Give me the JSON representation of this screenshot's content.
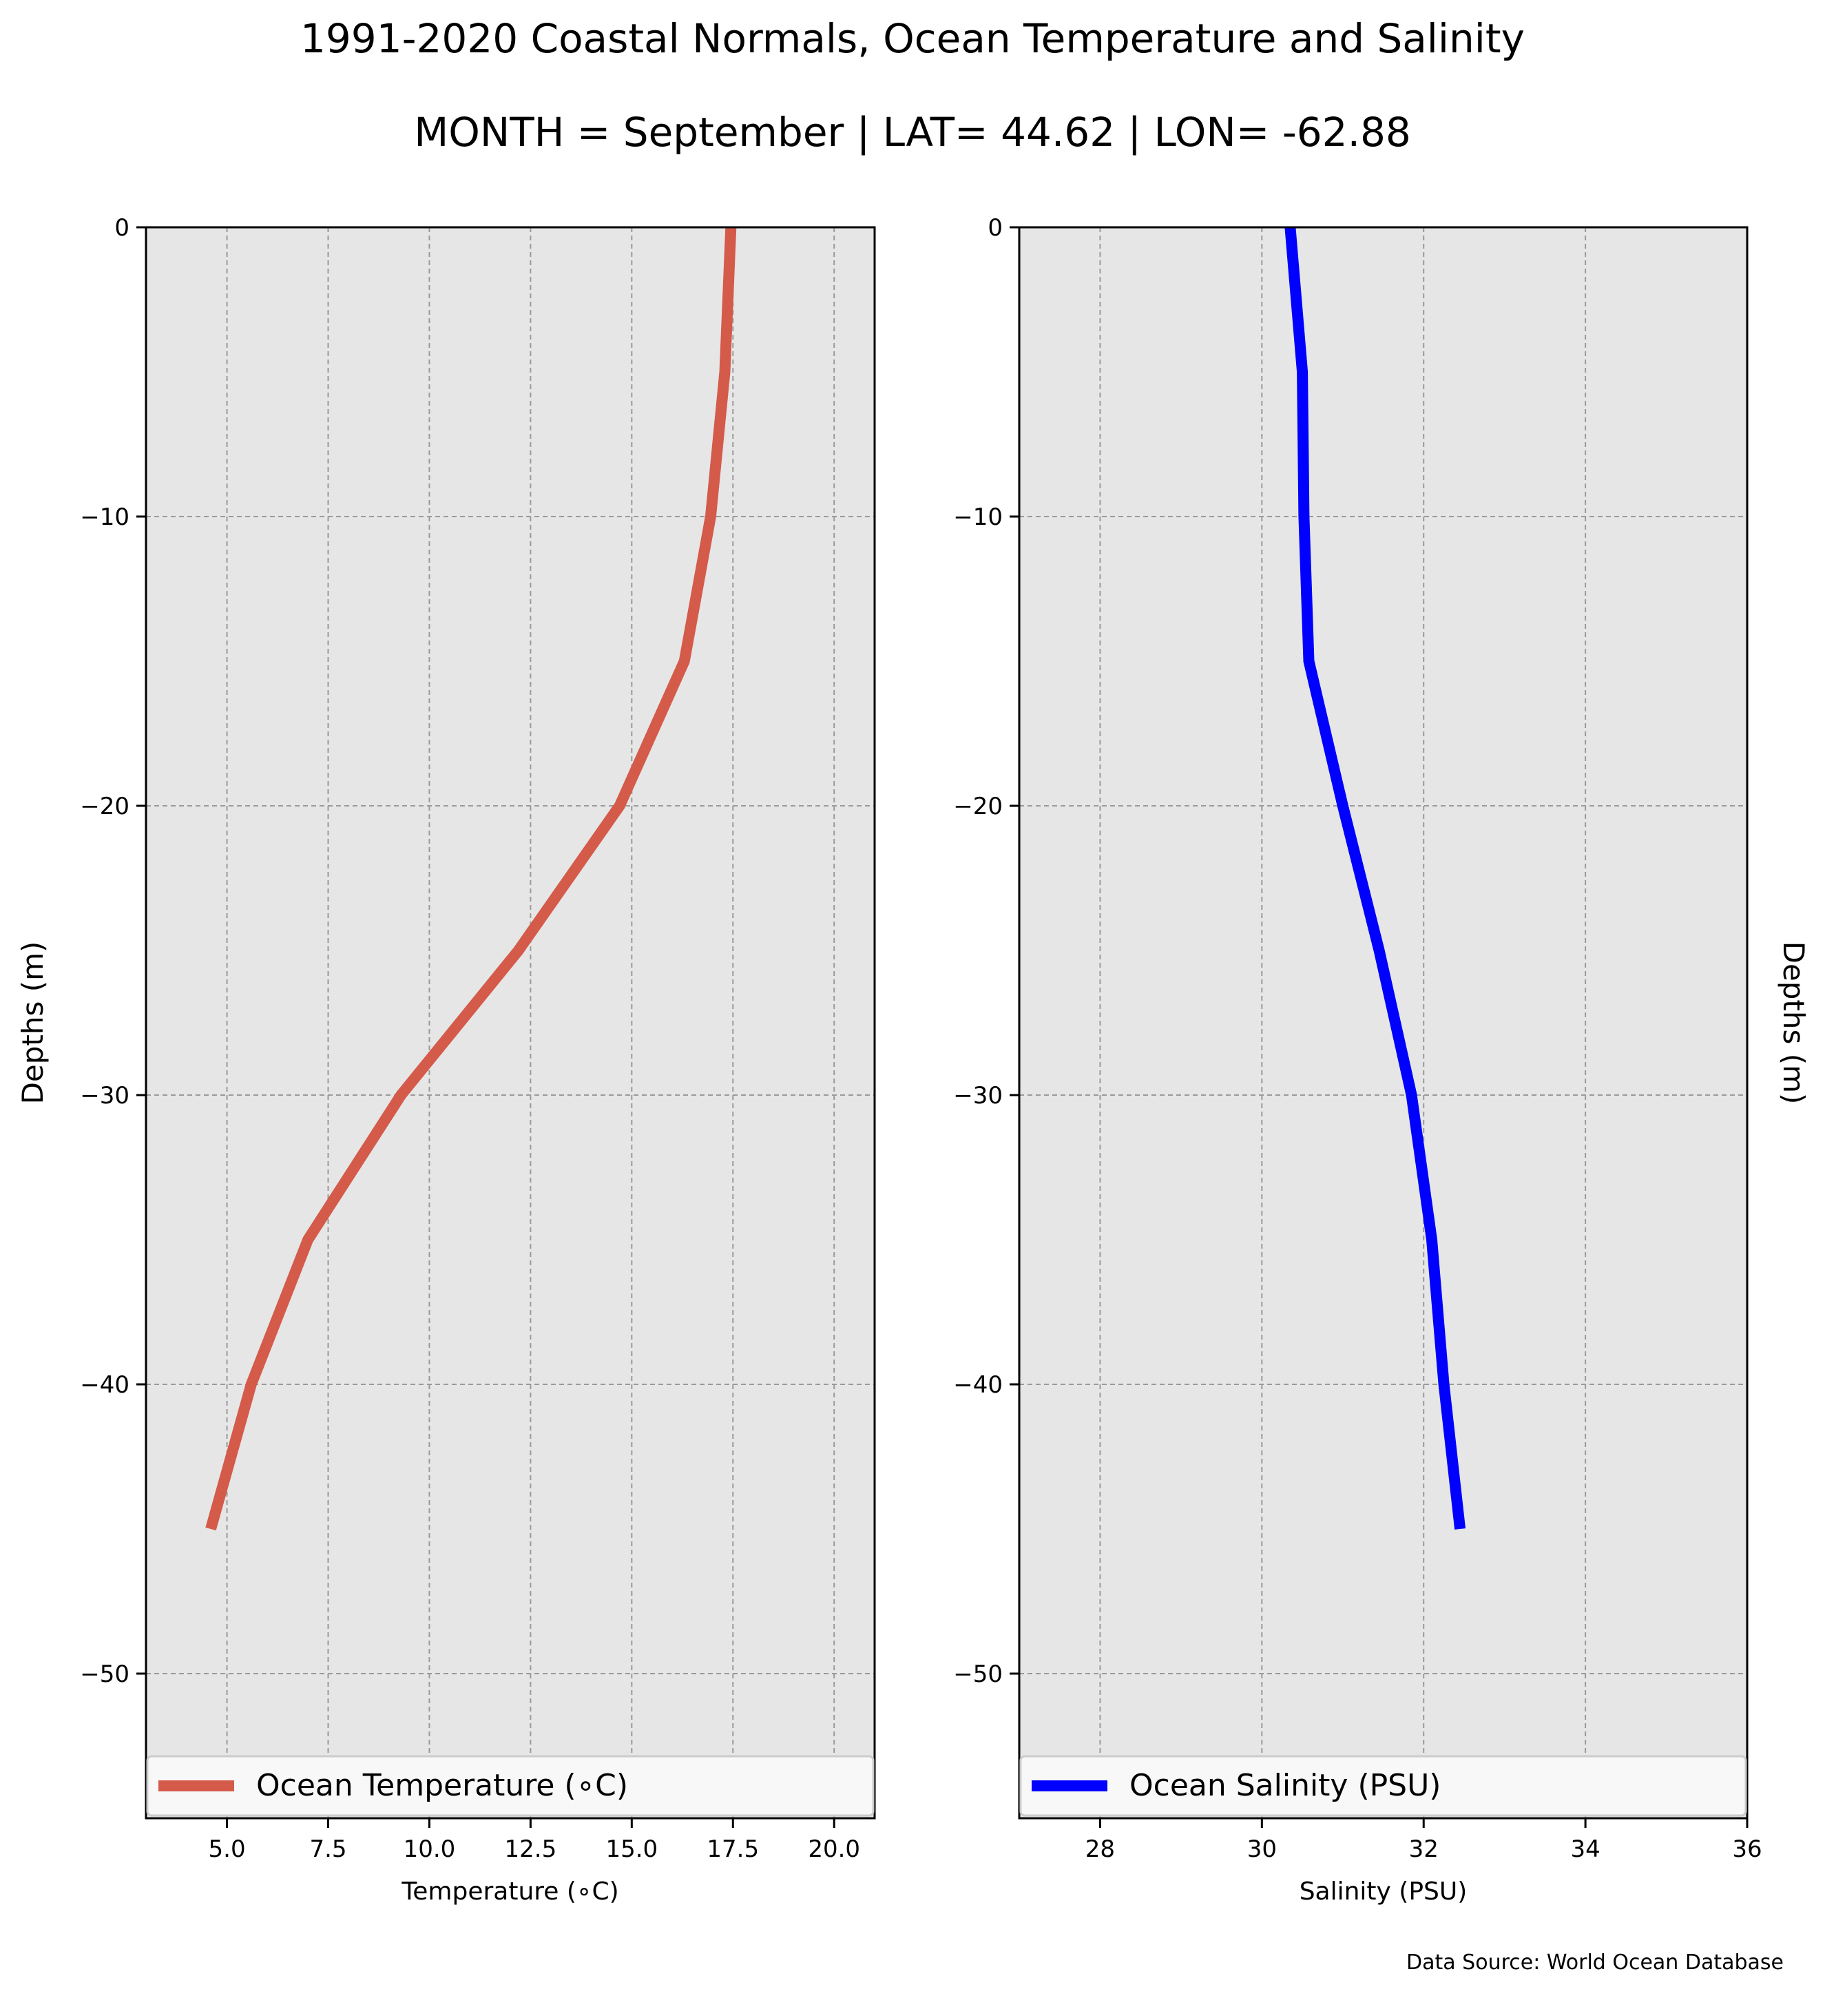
{
  "title": "1991-2020 Coastal Normals, Ocean Temperature and Salinity",
  "subtitle": "MONTH = September | LAT= 44.62 | LON= -62.88",
  "source": "Data Source: World Ocean Database",
  "chart_data": [
    {
      "type": "line",
      "xlabel": "Temperature (∘C)",
      "ylabel": "Depths (m)",
      "xlim": [
        3.0,
        21.0
      ],
      "ylim": [
        -55,
        0
      ],
      "xticks": [
        5.0,
        7.5,
        10.0,
        12.5,
        15.0,
        17.5,
        20.0
      ],
      "xticklabels": [
        "5.0",
        "7.5",
        "10.0",
        "12.5",
        "15.0",
        "17.5",
        "20.0"
      ],
      "yticks": [
        0,
        -10,
        -20,
        -30,
        -40,
        -50
      ],
      "yticklabels": [
        "0",
        "−10",
        "−20",
        "−30",
        "−40",
        "−50"
      ],
      "ylabel_side": "left",
      "grid": true,
      "legend_placement": "lower center",
      "color": "#d45a4a",
      "series": [
        {
          "name": "Ocean Temperature (∘C)",
          "x": [
            17.45,
            17.3,
            16.95,
            16.3,
            14.7,
            12.2,
            9.3,
            7.0,
            5.6,
            4.6
          ],
          "y": [
            0,
            -5,
            -10,
            -15,
            -20,
            -25,
            -30,
            -35,
            -40,
            -45
          ]
        }
      ]
    },
    {
      "type": "line",
      "xlabel": "Salinity (PSU)",
      "ylabel": "Depths (m)",
      "xlim": [
        27.0,
        36.0
      ],
      "ylim": [
        -55,
        0
      ],
      "xticks": [
        28,
        30,
        32,
        34,
        36
      ],
      "xticklabels": [
        "28",
        "30",
        "32",
        "34",
        "36"
      ],
      "yticks": [
        0,
        -10,
        -20,
        -30,
        -40,
        -50
      ],
      "yticklabels": [
        "0",
        "−10",
        "−20",
        "−30",
        "−40",
        "−50"
      ],
      "ylabel_side": "right",
      "grid": true,
      "legend_placement": "lower center",
      "color": "#0000ff",
      "series": [
        {
          "name": "Ocean Salinity (PSU)",
          "x": [
            30.35,
            30.5,
            30.52,
            30.58,
            31.0,
            31.45,
            31.85,
            32.1,
            32.25,
            32.45
          ],
          "y": [
            0,
            -5,
            -10,
            -15,
            -20,
            -25,
            -30,
            -35,
            -40,
            -45
          ]
        }
      ]
    }
  ]
}
